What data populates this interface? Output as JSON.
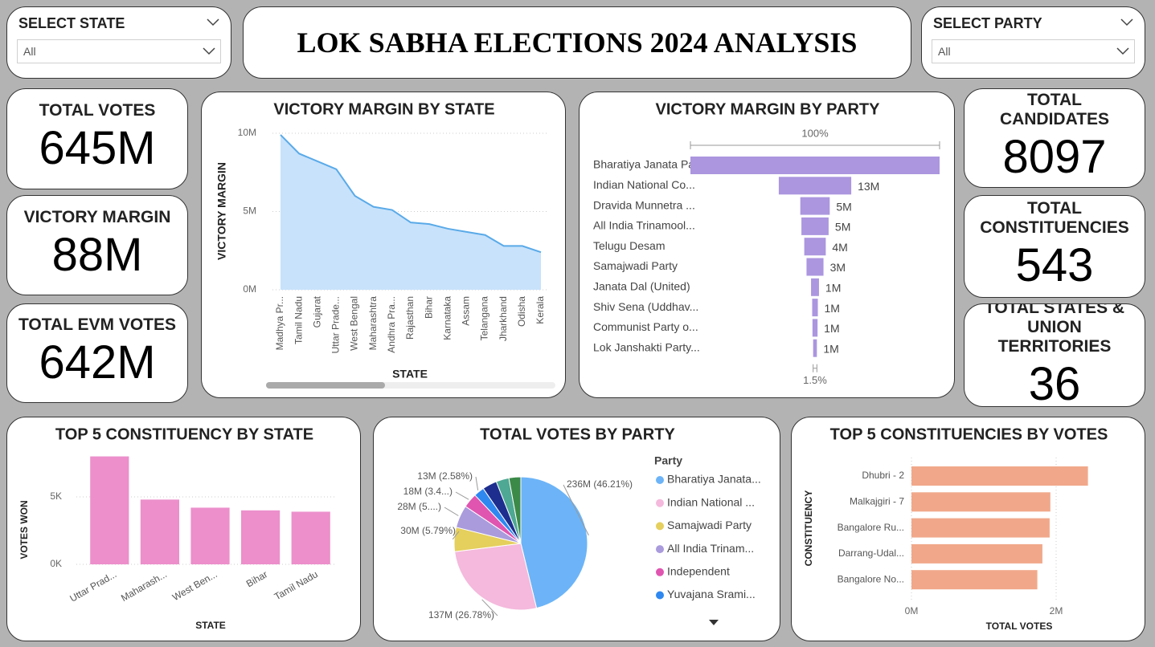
{
  "header": {
    "title": "LOK SABHA ELECTIONS 2024 ANALYSIS"
  },
  "filters": [
    {
      "label": "SELECT STATE",
      "value": "All"
    },
    {
      "label": "SELECT PARTY",
      "value": "All"
    }
  ],
  "cards": [
    {
      "label": "TOTAL VOTES",
      "value": "645M"
    },
    {
      "label": "VICTORY MARGIN",
      "value": "88M"
    },
    {
      "label": "TOTAL EVM VOTES",
      "value": "642M"
    },
    {
      "label": "TOTAL CANDIDATES",
      "value": 8097
    },
    {
      "label": "TOTAL CONSTITUENCIES",
      "value": 543
    },
    {
      "label": "TOTAL STATES & UNION TERRITORIES",
      "value": 36
    }
  ],
  "chart_data": [
    {
      "type": "area",
      "title": "VICTORY MARGIN BY STATE",
      "xlabel": "STATE",
      "ylabel": "VICTORY MARGIN",
      "categories": [
        "Madhya Pr...",
        "Tamil Nadu",
        "Gujarat",
        "Uttar Prade...",
        "West Bengal",
        "Maharashtra",
        "Andhra Pra...",
        "Rajasthan",
        "Bihar",
        "Karnataka",
        "Assam",
        "Telangana",
        "Jharkhand",
        "Odisha",
        "Kerala"
      ],
      "values": [
        9900000,
        8700000,
        8200000,
        7700000,
        6000000,
        5300000,
        5100000,
        4300000,
        4200000,
        3900000,
        3700000,
        3500000,
        2800000,
        2800000,
        2400000
      ],
      "ylim": [
        0,
        10000000
      ],
      "yticks": [
        {
          "value": 0,
          "label": "0M"
        },
        {
          "value": 5000000,
          "label": "5M"
        },
        {
          "value": 10000000,
          "label": "10M"
        }
      ],
      "color": "#c8e2fb",
      "line_color": "#5aaae8",
      "grid": true
    },
    {
      "type": "funnel",
      "title": "VICTORY MARGIN BY PARTY",
      "categories": [
        "Bharatiya Janata Pa...",
        "Indian National Co...",
        "Dravida Munnetra ...",
        "All India Trinamool...",
        "Telugu Desam",
        "Samajwadi Party",
        "Janata Dal (United)",
        "Shiv Sena (Uddhav...",
        "Communist Party o...",
        "Lok Janshakti Party..."
      ],
      "values": [
        44000000,
        12800000,
        5200000,
        4800000,
        3800000,
        3000000,
        1400000,
        1000000,
        900000,
        660000
      ],
      "value_labels": [
        null,
        "13M",
        "5M",
        "5M",
        "4M",
        "3M",
        "1M",
        "1M",
        "1M",
        "1M"
      ],
      "top_label": "100%",
      "bottom_label": "1.5%",
      "color": "#ab96df"
    },
    {
      "type": "bar",
      "title": "TOP 5 CONSTITUENCY BY STATE",
      "xlabel": "STATE",
      "ylabel": "VOTES WON",
      "categories": [
        "Uttar Prad...",
        "Maharash...",
        "West Ben...",
        "Bihar",
        "Tamil Nadu"
      ],
      "values": [
        8000,
        4800,
        4200,
        4000,
        3900
      ],
      "ylim": [
        0,
        8200
      ],
      "yticks": [
        {
          "value": 0,
          "label": "0K"
        },
        {
          "value": 5000,
          "label": "5K"
        }
      ],
      "color": "#ec8fcb",
      "grid": true
    },
    {
      "type": "pie",
      "title": "TOTAL VOTES BY PARTY",
      "legend_title": "Party",
      "categories": [
        "Bharatiya Janata...",
        "Indian National ...",
        "Samajwadi Party",
        "All India Trinam...",
        "Independent",
        "Yuvajana Srami...",
        null,
        null,
        null
      ],
      "values": [
        236000000,
        137000000,
        30000000,
        28000000,
        18000000,
        13000000,
        18000000,
        16000000,
        14700000
      ],
      "value_labels": [
        "236M (46.21%)",
        "137M (26.78%)",
        "30M (5.79%)",
        "28M (5....)",
        "18M (3.4...)",
        "13M (2.58%)",
        null,
        null,
        null
      ],
      "colors": [
        "#6cb4f7",
        "#f4b9dc",
        "#e5cf5d",
        "#a99bdc",
        "#e055b0",
        "#2f88f0",
        "#1d2e8f",
        "#4ea893",
        "#3c8a48"
      ]
    },
    {
      "type": "bar",
      "orientation": "horizontal",
      "title": "TOP 5 CONSTITUENCIES BY VOTES",
      "xlabel": "TOTAL VOTES",
      "ylabel": "CONSTITUENCY",
      "categories": [
        "Dhubri - 2",
        "Malkajgiri - 7",
        "Bangalore Ru...",
        "Darrang-Udal...",
        "Bangalore No..."
      ],
      "values": [
        2440000,
        1920000,
        1910000,
        1810000,
        1740000
      ],
      "xlim": [
        0,
        2500000
      ],
      "xticks": [
        {
          "value": 0,
          "label": "0M"
        },
        {
          "value": 2000000,
          "label": "2M"
        }
      ],
      "color": "#f1a88a",
      "grid": true
    }
  ]
}
